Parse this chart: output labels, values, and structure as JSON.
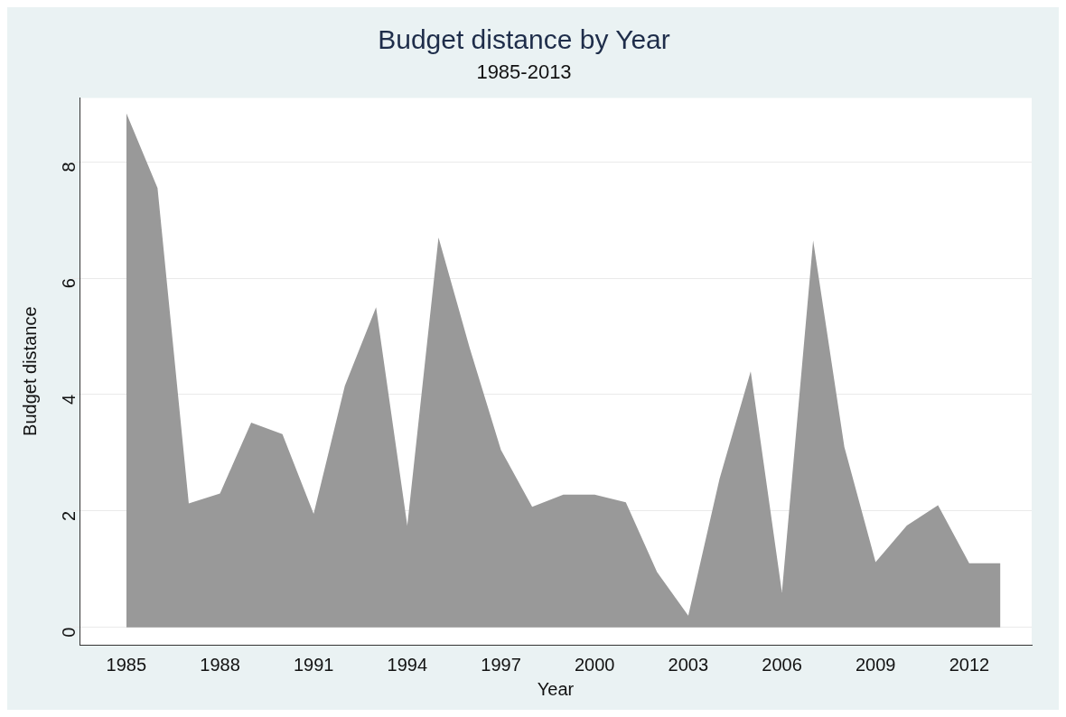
{
  "chart_data": {
    "type": "area",
    "title": "Budget distance by Year",
    "subtitle": "1985-2013",
    "xlabel": "Year",
    "ylabel": "Budget distance",
    "x": [
      1985,
      1986,
      1987,
      1988,
      1989,
      1990,
      1991,
      1992,
      1993,
      1994,
      1995,
      1996,
      1997,
      1998,
      1999,
      2000,
      2001,
      2002,
      2003,
      2004,
      2005,
      2006,
      2007,
      2008,
      2009,
      2010,
      2011,
      2012,
      2013
    ],
    "values": [
      8.84,
      7.55,
      2.13,
      2.3,
      3.52,
      3.32,
      1.95,
      4.15,
      5.5,
      1.75,
      6.7,
      4.8,
      3.05,
      2.07,
      2.28,
      2.28,
      2.15,
      0.95,
      0.2,
      2.55,
      4.4,
      0.6,
      6.65,
      3.1,
      1.12,
      1.75,
      2.1,
      1.1,
      1.1
    ],
    "color": "#999999",
    "xlim": [
      1983.5,
      2014
    ],
    "xticks": [
      1985,
      1988,
      1991,
      1994,
      1997,
      2000,
      2003,
      2006,
      2009,
      2012
    ],
    "ylim": [
      -0.3,
      9.1
    ],
    "yticks": [
      0,
      2,
      4,
      6,
      8
    ],
    "grid": "y",
    "legend": false
  }
}
